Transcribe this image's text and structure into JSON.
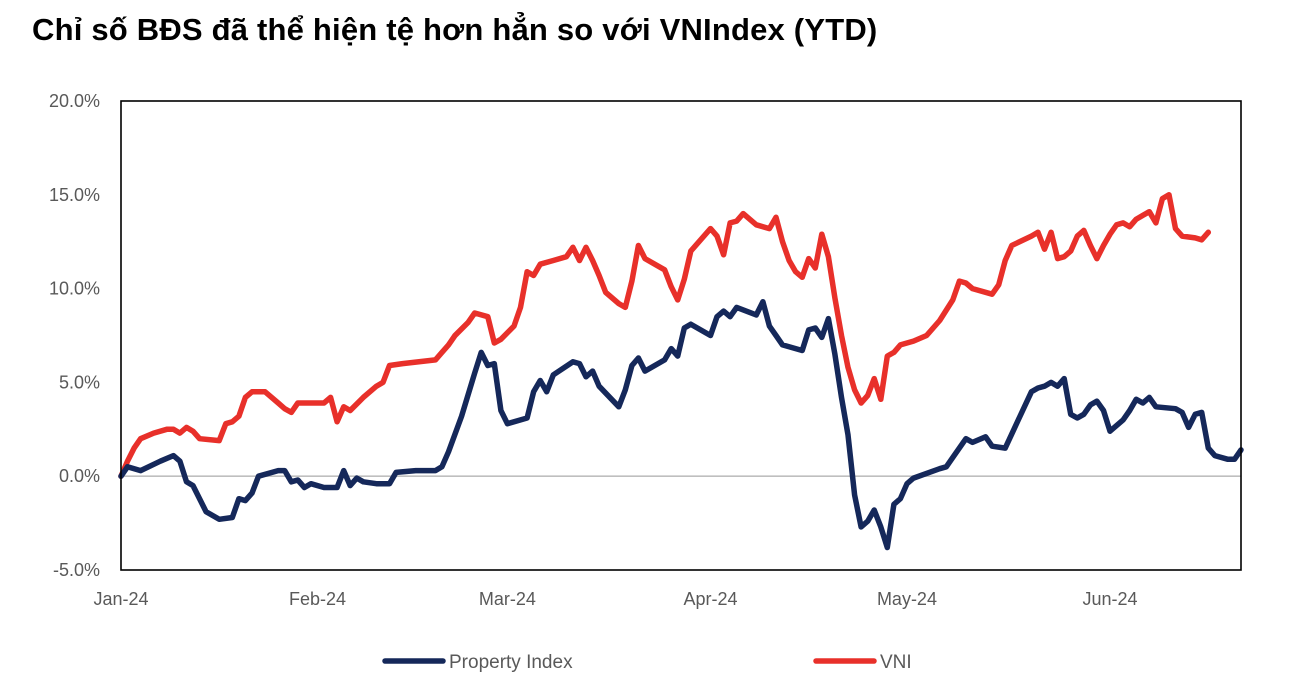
{
  "title": "Chỉ số BĐS đã thể hiện tệ hơn hẳn so với VNIndex (YTD)",
  "chart_data": {
    "type": "line",
    "title": "Chỉ số BĐS đã thể hiện tệ hơn hẳn so với VNIndex (YTD)",
    "xlabel": "",
    "ylabel": "",
    "x_tick_labels": [
      "Jan-24",
      "Feb-24",
      "Mar-24",
      "Apr-24",
      "May-24",
      "Jun-24"
    ],
    "y_tick_labels": [
      "-5.0%",
      "0.0%",
      "5.0%",
      "10.0%",
      "15.0%",
      "20.0%"
    ],
    "ylim": [
      -5,
      20
    ],
    "x_range": [
      "2024-01-02",
      "2024-06-21"
    ],
    "grid": false,
    "legend_position": "bottom",
    "series": [
      {
        "name": "Property Index",
        "color": "#15285a",
        "points": [
          [
            "2024-01-02",
            0.0
          ],
          [
            "2024-01-03",
            0.5
          ],
          [
            "2024-01-05",
            0.3
          ],
          [
            "2024-01-08",
            0.8
          ],
          [
            "2024-01-10",
            1.1
          ],
          [
            "2024-01-11",
            0.8
          ],
          [
            "2024-01-12",
            -0.3
          ],
          [
            "2024-01-13",
            -0.5
          ],
          [
            "2024-01-15",
            -1.9
          ],
          [
            "2024-01-17",
            -2.3
          ],
          [
            "2024-01-19",
            -2.2
          ],
          [
            "2024-01-20",
            -1.2
          ],
          [
            "2024-01-21",
            -1.3
          ],
          [
            "2024-01-22",
            -0.9
          ],
          [
            "2024-01-23",
            0.0
          ],
          [
            "2024-01-26",
            0.3
          ],
          [
            "2024-01-27",
            0.3
          ],
          [
            "2024-01-28",
            -0.3
          ],
          [
            "2024-01-29",
            -0.2
          ],
          [
            "2024-01-30",
            -0.6
          ],
          [
            "2024-01-31",
            -0.4
          ],
          [
            "2024-02-02",
            -0.6
          ],
          [
            "2024-02-04",
            -0.6
          ],
          [
            "2024-02-05",
            0.3
          ],
          [
            "2024-02-06",
            -0.5
          ],
          [
            "2024-02-07",
            -0.1
          ],
          [
            "2024-02-08",
            -0.3
          ],
          [
            "2024-02-10",
            -0.4
          ],
          [
            "2024-02-12",
            -0.4
          ],
          [
            "2024-02-13",
            0.2
          ],
          [
            "2024-02-16",
            0.3
          ],
          [
            "2024-02-19",
            0.3
          ],
          [
            "2024-02-20",
            0.5
          ],
          [
            "2024-02-21",
            1.3
          ],
          [
            "2024-02-23",
            3.2
          ],
          [
            "2024-02-25",
            5.5
          ],
          [
            "2024-02-26",
            6.6
          ],
          [
            "2024-02-27",
            5.9
          ],
          [
            "2024-02-28",
            6.0
          ],
          [
            "2024-02-29",
            3.5
          ],
          [
            "2024-03-01",
            2.8
          ],
          [
            "2024-03-04",
            3.1
          ],
          [
            "2024-03-05",
            4.5
          ],
          [
            "2024-03-06",
            5.1
          ],
          [
            "2024-03-07",
            4.5
          ],
          [
            "2024-03-08",
            5.4
          ],
          [
            "2024-03-11",
            6.1
          ],
          [
            "2024-03-12",
            6.0
          ],
          [
            "2024-03-13",
            5.3
          ],
          [
            "2024-03-14",
            5.6
          ],
          [
            "2024-03-15",
            4.8
          ],
          [
            "2024-03-18",
            3.7
          ],
          [
            "2024-03-19",
            4.6
          ],
          [
            "2024-03-20",
            5.9
          ],
          [
            "2024-03-21",
            6.3
          ],
          [
            "2024-03-22",
            5.6
          ],
          [
            "2024-03-25",
            6.2
          ],
          [
            "2024-03-26",
            6.8
          ],
          [
            "2024-03-27",
            6.4
          ],
          [
            "2024-03-28",
            7.9
          ],
          [
            "2024-03-29",
            8.1
          ],
          [
            "2024-04-01",
            7.5
          ],
          [
            "2024-04-02",
            8.5
          ],
          [
            "2024-04-03",
            8.8
          ],
          [
            "2024-04-04",
            8.5
          ],
          [
            "2024-04-05",
            9.0
          ],
          [
            "2024-04-08",
            8.6
          ],
          [
            "2024-04-09",
            9.3
          ],
          [
            "2024-04-10",
            8.0
          ],
          [
            "2024-04-11",
            7.5
          ],
          [
            "2024-04-12",
            7.0
          ],
          [
            "2024-04-15",
            6.7
          ],
          [
            "2024-04-16",
            7.8
          ],
          [
            "2024-04-17",
            7.9
          ],
          [
            "2024-04-18",
            7.4
          ],
          [
            "2024-04-19",
            8.4
          ],
          [
            "2024-04-20",
            6.5
          ],
          [
            "2024-04-21",
            4.2
          ],
          [
            "2024-04-22",
            2.2
          ],
          [
            "2024-04-23",
            -1.0
          ],
          [
            "2024-04-24",
            -2.7
          ],
          [
            "2024-04-25",
            -2.4
          ],
          [
            "2024-04-26",
            -1.8
          ],
          [
            "2024-04-27",
            -2.7
          ],
          [
            "2024-04-28",
            -3.8
          ],
          [
            "2024-04-29",
            -1.5
          ],
          [
            "2024-04-30",
            -1.2
          ],
          [
            "2024-05-01",
            -0.4
          ],
          [
            "2024-05-02",
            -0.1
          ],
          [
            "2024-05-06",
            0.4
          ],
          [
            "2024-05-07",
            0.5
          ],
          [
            "2024-05-08",
            1.0
          ],
          [
            "2024-05-10",
            2.0
          ],
          [
            "2024-05-11",
            1.8
          ],
          [
            "2024-05-13",
            2.1
          ],
          [
            "2024-05-14",
            1.6
          ],
          [
            "2024-05-16",
            1.5
          ],
          [
            "2024-05-18",
            3.0
          ],
          [
            "2024-05-20",
            4.5
          ],
          [
            "2024-05-21",
            4.7
          ],
          [
            "2024-05-22",
            4.8
          ],
          [
            "2024-05-23",
            5.0
          ],
          [
            "2024-05-24",
            4.8
          ],
          [
            "2024-05-25",
            5.2
          ],
          [
            "2024-05-26",
            3.3
          ],
          [
            "2024-05-27",
            3.1
          ],
          [
            "2024-05-28",
            3.3
          ],
          [
            "2024-05-29",
            3.8
          ],
          [
            "2024-05-30",
            4.0
          ],
          [
            "2024-05-31",
            3.5
          ],
          [
            "2024-06-01",
            2.4
          ],
          [
            "2024-06-03",
            3.0
          ],
          [
            "2024-06-04",
            3.5
          ],
          [
            "2024-06-05",
            4.1
          ],
          [
            "2024-06-06",
            3.9
          ],
          [
            "2024-06-07",
            4.2
          ],
          [
            "2024-06-08",
            3.7
          ],
          [
            "2024-06-11",
            3.6
          ],
          [
            "2024-06-12",
            3.4
          ],
          [
            "2024-06-13",
            2.6
          ],
          [
            "2024-06-14",
            3.3
          ],
          [
            "2024-06-15",
            3.4
          ],
          [
            "2024-06-16",
            1.5
          ],
          [
            "2024-06-17",
            1.1
          ],
          [
            "2024-06-19",
            0.9
          ],
          [
            "2024-06-20",
            0.9
          ],
          [
            "2024-06-21",
            1.4
          ]
        ]
      },
      {
        "name": "VNI",
        "color": "#e8302a",
        "points": [
          [
            "2024-01-02",
            0.0
          ],
          [
            "2024-01-03",
            0.8
          ],
          [
            "2024-01-04",
            1.5
          ],
          [
            "2024-01-05",
            2.0
          ],
          [
            "2024-01-07",
            2.3
          ],
          [
            "2024-01-09",
            2.5
          ],
          [
            "2024-01-10",
            2.5
          ],
          [
            "2024-01-11",
            2.3
          ],
          [
            "2024-01-12",
            2.6
          ],
          [
            "2024-01-13",
            2.4
          ],
          [
            "2024-01-14",
            2.0
          ],
          [
            "2024-01-17",
            1.9
          ],
          [
            "2024-01-18",
            2.8
          ],
          [
            "2024-01-19",
            2.9
          ],
          [
            "2024-01-20",
            3.2
          ],
          [
            "2024-01-21",
            4.2
          ],
          [
            "2024-01-22",
            4.5
          ],
          [
            "2024-01-24",
            4.5
          ],
          [
            "2024-01-26",
            3.9
          ],
          [
            "2024-01-27",
            3.6
          ],
          [
            "2024-01-28",
            3.4
          ],
          [
            "2024-01-29",
            3.9
          ],
          [
            "2024-01-31",
            3.9
          ],
          [
            "2024-02-02",
            3.9
          ],
          [
            "2024-02-03",
            4.2
          ],
          [
            "2024-02-04",
            2.9
          ],
          [
            "2024-02-05",
            3.7
          ],
          [
            "2024-02-06",
            3.5
          ],
          [
            "2024-02-08",
            4.2
          ],
          [
            "2024-02-10",
            4.8
          ],
          [
            "2024-02-11",
            5.0
          ],
          [
            "2024-02-12",
            5.9
          ],
          [
            "2024-02-14",
            6.0
          ],
          [
            "2024-02-19",
            6.2
          ],
          [
            "2024-02-20",
            6.6
          ],
          [
            "2024-02-21",
            7.0
          ],
          [
            "2024-02-22",
            7.5
          ],
          [
            "2024-02-24",
            8.2
          ],
          [
            "2024-02-25",
            8.7
          ],
          [
            "2024-02-27",
            8.5
          ],
          [
            "2024-02-28",
            7.1
          ],
          [
            "2024-02-29",
            7.3
          ],
          [
            "2024-03-02",
            8.0
          ],
          [
            "2024-03-03",
            9.0
          ],
          [
            "2024-03-04",
            10.9
          ],
          [
            "2024-03-05",
            10.7
          ],
          [
            "2024-03-06",
            11.3
          ],
          [
            "2024-03-08",
            11.5
          ],
          [
            "2024-03-10",
            11.7
          ],
          [
            "2024-03-11",
            12.2
          ],
          [
            "2024-03-12",
            11.5
          ],
          [
            "2024-03-13",
            12.2
          ],
          [
            "2024-03-14",
            11.5
          ],
          [
            "2024-03-15",
            10.7
          ],
          [
            "2024-03-16",
            9.8
          ],
          [
            "2024-03-18",
            9.2
          ],
          [
            "2024-03-19",
            9.0
          ],
          [
            "2024-03-20",
            10.4
          ],
          [
            "2024-03-21",
            12.3
          ],
          [
            "2024-03-22",
            11.6
          ],
          [
            "2024-03-25",
            11.0
          ],
          [
            "2024-03-26",
            10.1
          ],
          [
            "2024-03-27",
            9.4
          ],
          [
            "2024-03-28",
            10.5
          ],
          [
            "2024-03-29",
            12.0
          ],
          [
            "2024-04-01",
            13.2
          ],
          [
            "2024-04-02",
            12.8
          ],
          [
            "2024-04-03",
            11.8
          ],
          [
            "2024-04-04",
            13.5
          ],
          [
            "2024-04-05",
            13.6
          ],
          [
            "2024-04-06",
            14.0
          ],
          [
            "2024-04-08",
            13.4
          ],
          [
            "2024-04-10",
            13.2
          ],
          [
            "2024-04-11",
            13.8
          ],
          [
            "2024-04-12",
            12.5
          ],
          [
            "2024-04-13",
            11.5
          ],
          [
            "2024-04-14",
            10.9
          ],
          [
            "2024-04-15",
            10.6
          ],
          [
            "2024-04-16",
            11.6
          ],
          [
            "2024-04-17",
            11.1
          ],
          [
            "2024-04-18",
            12.9
          ],
          [
            "2024-04-19",
            11.7
          ],
          [
            "2024-04-20",
            9.5
          ],
          [
            "2024-04-21",
            7.5
          ],
          [
            "2024-04-22",
            5.8
          ],
          [
            "2024-04-23",
            4.6
          ],
          [
            "2024-04-24",
            3.9
          ],
          [
            "2024-04-25",
            4.3
          ],
          [
            "2024-04-26",
            5.2
          ],
          [
            "2024-04-27",
            4.1
          ],
          [
            "2024-04-28",
            6.4
          ],
          [
            "2024-04-29",
            6.6
          ],
          [
            "2024-04-30",
            7.0
          ],
          [
            "2024-05-02",
            7.2
          ],
          [
            "2024-05-04",
            7.5
          ],
          [
            "2024-05-06",
            8.3
          ],
          [
            "2024-05-08",
            9.4
          ],
          [
            "2024-05-09",
            10.4
          ],
          [
            "2024-05-10",
            10.3
          ],
          [
            "2024-05-11",
            10.0
          ],
          [
            "2024-05-14",
            9.7
          ],
          [
            "2024-05-15",
            10.2
          ],
          [
            "2024-05-16",
            11.5
          ],
          [
            "2024-05-17",
            12.3
          ],
          [
            "2024-05-20",
            12.8
          ],
          [
            "2024-05-21",
            13.0
          ],
          [
            "2024-05-22",
            12.1
          ],
          [
            "2024-05-23",
            13.0
          ],
          [
            "2024-05-24",
            11.6
          ],
          [
            "2024-05-25",
            11.7
          ],
          [
            "2024-05-26",
            12.0
          ],
          [
            "2024-05-27",
            12.8
          ],
          [
            "2024-05-28",
            13.1
          ],
          [
            "2024-05-29",
            12.3
          ],
          [
            "2024-05-30",
            11.6
          ],
          [
            "2024-05-31",
            12.3
          ],
          [
            "2024-06-01",
            12.9
          ],
          [
            "2024-06-02",
            13.4
          ],
          [
            "2024-06-03",
            13.5
          ],
          [
            "2024-06-04",
            13.3
          ],
          [
            "2024-06-05",
            13.7
          ],
          [
            "2024-06-06",
            13.9
          ],
          [
            "2024-06-07",
            14.1
          ],
          [
            "2024-06-08",
            13.5
          ],
          [
            "2024-06-09",
            14.8
          ],
          [
            "2024-06-10",
            15.0
          ],
          [
            "2024-06-11",
            13.2
          ],
          [
            "2024-06-12",
            12.8
          ],
          [
            "2024-06-14",
            12.7
          ],
          [
            "2024-06-15",
            12.6
          ],
          [
            "2024-06-16",
            13.0
          ]
        ]
      }
    ]
  }
}
